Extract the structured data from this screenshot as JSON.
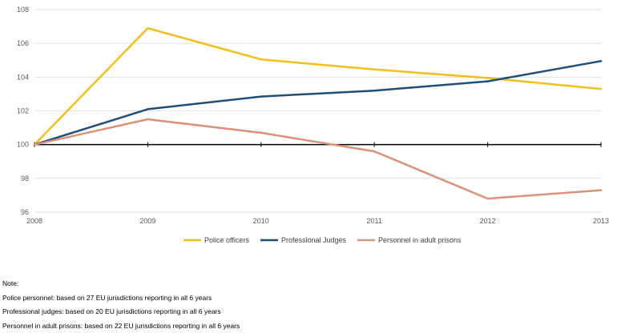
{
  "chart_data": {
    "type": "line",
    "x": [
      "2008",
      "2009",
      "2010",
      "2011",
      "2012",
      "2013"
    ],
    "ylim": [
      96,
      108
    ],
    "yticks": [
      96,
      98,
      100,
      102,
      104,
      106,
      108
    ],
    "baseline": 100,
    "grid": true,
    "legend_position": "bottom",
    "series": [
      {
        "name": "Police officers",
        "color": "#f2be1a",
        "values": [
          100,
          106.9,
          105.05,
          104.45,
          103.95,
          103.3
        ]
      },
      {
        "name": "Professional Judges",
        "color": "#1f4e79",
        "values": [
          100,
          102.1,
          102.85,
          103.2,
          103.75,
          104.95
        ]
      },
      {
        "name": "Personnel in adult prisons",
        "color": "#d9917a",
        "values": [
          100,
          101.5,
          100.7,
          99.6,
          96.8,
          97.3
        ]
      }
    ]
  },
  "notes": {
    "heading": "Note:",
    "lines": [
      "Police personnel: based on 27 EU jurisdictions reporting in all 6 years",
      "Professional judges: based on 20 EU jurisdictions reporting in all 6 years",
      "Personnel in adult prisons: based on 22 EU jurisdictions reporting in all 6 years"
    ]
  }
}
